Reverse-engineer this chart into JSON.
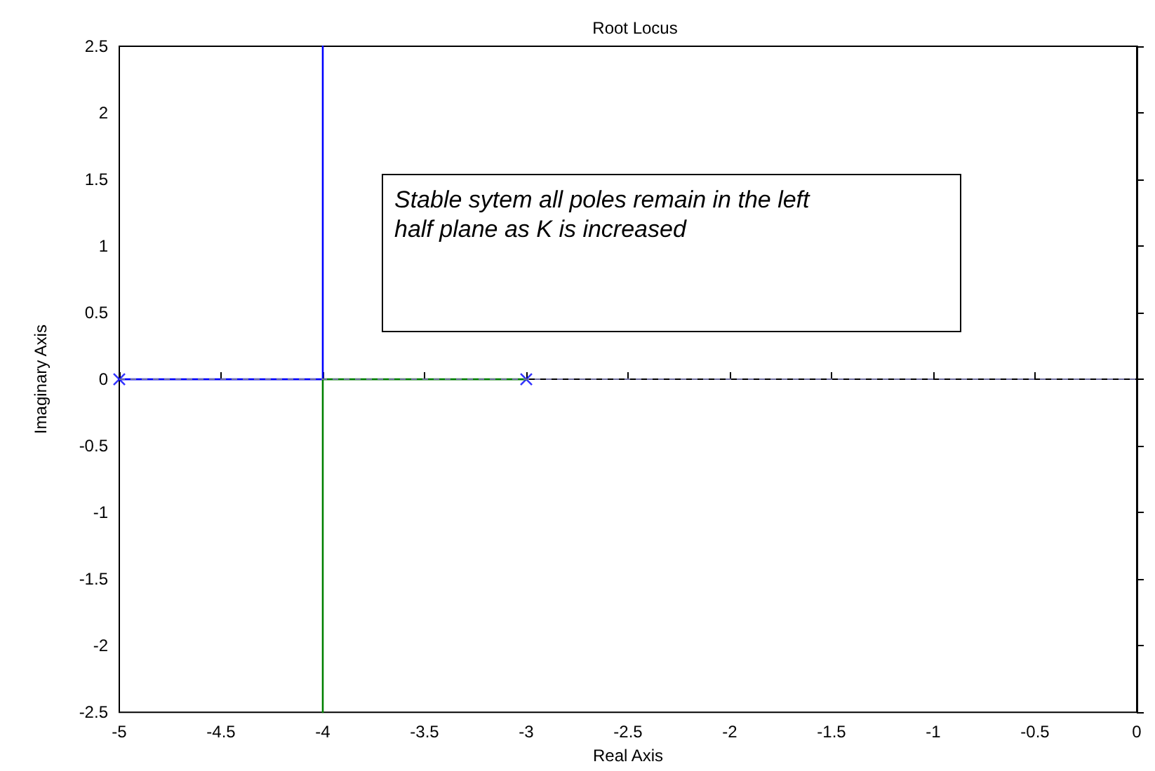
{
  "chart_data": {
    "type": "line",
    "title": "Root Locus",
    "xlabel": "Real Axis",
    "ylabel": "Imaginary Axis",
    "annotations": [
      "Stable sytem all poles remain in the left\nhalf plane as K is increased"
    ],
    "series": [
      {
        "color": "#0000ff",
        "x": [
          -5,
          -4,
          -4
        ],
        "values": [
          0,
          0,
          2.5
        ],
        "marker": "none",
        "line_style": "solid"
      },
      {
        "color": "#008000",
        "x": [
          -3,
          -4,
          -4
        ],
        "values": [
          0,
          0,
          -2.5
        ],
        "marker": "none",
        "line_style": "solid"
      },
      {
        "type": "scatter",
        "color": "#0000ff",
        "x": [
          -5,
          -3
        ],
        "values": [
          0,
          0
        ],
        "marker": "cross"
      }
    ],
    "xlim": [
      -5,
      0
    ],
    "xticks": [
      -5,
      -4.5,
      -4,
      -3.5,
      -3,
      -2.5,
      -2,
      -1.5,
      -1,
      -0.5,
      0
    ],
    "ylim": [
      -2.5,
      2.5
    ],
    "yticks": [
      -2.5,
      -2,
      -1.5,
      -1,
      -0.5,
      0,
      0.5,
      1,
      1.5,
      2,
      2.5
    ],
    "ref_lines": [
      {
        "axis": "y",
        "value": 0,
        "color": "#6f6f9f",
        "line_style": "dashed"
      }
    ],
    "grid": false
  }
}
